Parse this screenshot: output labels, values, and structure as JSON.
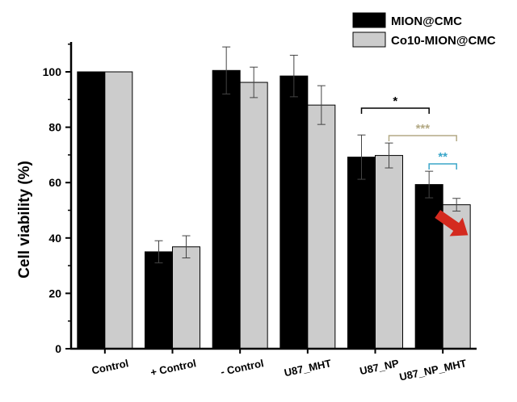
{
  "chart_data": {
    "type": "bar",
    "categories": [
      "Control",
      "+ Control",
      "- Control",
      "U87_MHT",
      "U87_NP",
      "U87_NP_MHT"
    ],
    "series": [
      {
        "name": "MION@CMC",
        "color": "#000000",
        "values": [
          100,
          35,
          100.5,
          98.5,
          69.2,
          59.3
        ],
        "errors": [
          0,
          4,
          8.5,
          7.5,
          8,
          4.8
        ]
      },
      {
        "name": "Co10-MION@CMC",
        "color": "#cccccc",
        "values": [
          100,
          36.8,
          96.2,
          88,
          69.8,
          52
        ],
        "errors": [
          0,
          4,
          5.5,
          7,
          4.5,
          2.3
        ]
      }
    ],
    "ylabel": "Cell viability (%)",
    "xlabel": "",
    "ylim": [
      0,
      120
    ],
    "yticks": [
      0,
      20,
      40,
      60,
      80,
      100
    ],
    "grid": false,
    "legend_position": "top-right",
    "significance": [
      {
        "label": "*",
        "from": [
          4,
          0
        ],
        "to": [
          5,
          0
        ],
        "color": "#000000"
      },
      {
        "label": "***",
        "from": [
          4,
          1
        ],
        "to": [
          5,
          1
        ],
        "color": "#b3a985"
      },
      {
        "label": "**",
        "from": [
          5,
          0
        ],
        "to": [
          5,
          1
        ],
        "color": "#3aa6c9"
      }
    ],
    "annotation": {
      "type": "arrow",
      "color": "#d42a1f",
      "target": [
        5,
        1
      ]
    }
  }
}
